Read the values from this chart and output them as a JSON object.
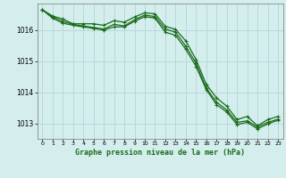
{
  "background_color": "#d4eeee",
  "grid_color": "#b8d8d8",
  "line_color": "#1a6b1a",
  "xlabel": "Graphe pression niveau de la mer (hPa)",
  "ylim": [
    1012.5,
    1016.85
  ],
  "xlim": [
    -0.5,
    23.5
  ],
  "yticks": [
    1013,
    1014,
    1015,
    1016
  ],
  "xticks": [
    0,
    1,
    2,
    3,
    4,
    5,
    6,
    7,
    8,
    9,
    10,
    11,
    12,
    13,
    14,
    15,
    16,
    17,
    18,
    19,
    20,
    21,
    22,
    23
  ],
  "series": [
    [
      1016.65,
      1016.45,
      1016.35,
      1016.2,
      1016.2,
      1016.2,
      1016.15,
      1016.3,
      1016.25,
      1016.42,
      1016.55,
      1016.52,
      1016.12,
      1016.02,
      1015.65,
      1015.05,
      1014.25,
      1013.82,
      1013.55,
      1013.12,
      1013.22,
      1012.92,
      1013.12,
      1013.22
    ],
    [
      1016.65,
      1016.42,
      1016.28,
      1016.18,
      1016.13,
      1016.08,
      1016.03,
      1016.18,
      1016.13,
      1016.33,
      1016.48,
      1016.43,
      1016.03,
      1015.93,
      1015.48,
      1014.93,
      1014.13,
      1013.68,
      1013.43,
      1013.03,
      1013.08,
      1012.88,
      1013.03,
      1013.13
    ],
    [
      1016.65,
      1016.38,
      1016.22,
      1016.15,
      1016.1,
      1016.05,
      1016.0,
      1016.1,
      1016.1,
      1016.28,
      1016.43,
      1016.38,
      1015.93,
      1015.83,
      1015.38,
      1014.83,
      1014.08,
      1013.6,
      1013.36,
      1012.96,
      1013.03,
      1012.82,
      1012.98,
      1013.1
    ]
  ]
}
